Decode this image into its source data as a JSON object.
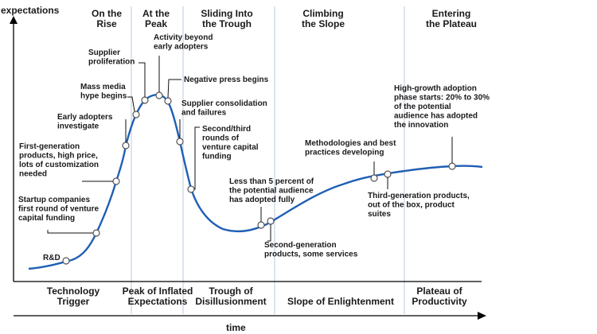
{
  "axes": {
    "y_label": "expectations",
    "x_label": "time"
  },
  "phases_top": [
    {
      "lines": [
        "On the",
        "Rise"
      ]
    },
    {
      "lines": [
        "At the",
        "Peak"
      ]
    },
    {
      "lines": [
        "Sliding Into",
        "the Trough"
      ]
    },
    {
      "lines": [
        "Climbing",
        "the Slope"
      ]
    },
    {
      "lines": [
        "Entering",
        "the Plateau"
      ]
    }
  ],
  "phases_bottom": [
    {
      "lines": [
        "Technology",
        "Trigger"
      ]
    },
    {
      "lines": [
        "Peak of Inflated",
        "Expectations"
      ]
    },
    {
      "lines": [
        "Trough of",
        "Disillusionment"
      ]
    },
    {
      "lines": [
        "Slope of Enlightenment"
      ]
    },
    {
      "lines": [
        "Plateau of",
        "Productivity"
      ]
    }
  ],
  "annotations": [
    {
      "id": "rd",
      "lines": [
        "R&D"
      ]
    },
    {
      "id": "startup",
      "lines": [
        "Startup companies",
        "first round of venture",
        "capital funding"
      ]
    },
    {
      "id": "first-gen",
      "lines": [
        "First-generation",
        "products, high price,",
        "lots of customization",
        "needed"
      ]
    },
    {
      "id": "early-adopters",
      "lines": [
        "Early adopters",
        "investigate"
      ]
    },
    {
      "id": "mass-media",
      "lines": [
        "Mass media",
        "hype begins"
      ]
    },
    {
      "id": "supplier-prolif",
      "lines": [
        "Supplier",
        "proliferation"
      ]
    },
    {
      "id": "activity-beyond",
      "lines": [
        "Activity beyond",
        "early adopters"
      ]
    },
    {
      "id": "negative-press",
      "lines": [
        "Negative press begins"
      ]
    },
    {
      "id": "consolidation",
      "lines": [
        "Supplier consolidation",
        "and failures"
      ]
    },
    {
      "id": "second-third",
      "lines": [
        "Second/third",
        "rounds of",
        "venture capital",
        "funding"
      ]
    },
    {
      "id": "less-than-5",
      "lines": [
        "Less than 5 percent of",
        "the potential audience",
        "has adopted fully"
      ]
    },
    {
      "id": "second-gen",
      "lines": [
        "Second-generation",
        "products, some services"
      ]
    },
    {
      "id": "methodologies",
      "lines": [
        "Methodologies and best",
        "practices developing"
      ]
    },
    {
      "id": "third-gen",
      "lines": [
        "Third-generation products,",
        "out of the box, product",
        "suites"
      ]
    },
    {
      "id": "high-growth",
      "lines": [
        "High-growth adoption",
        "phase starts: 20% to 30%",
        "of the potential",
        "audience has adopted",
        "the innovation"
      ]
    }
  ],
  "colors": {
    "curve": "#1f5fb4",
    "divider": "#b9c9dc",
    "marker_stroke": "#555555"
  }
}
